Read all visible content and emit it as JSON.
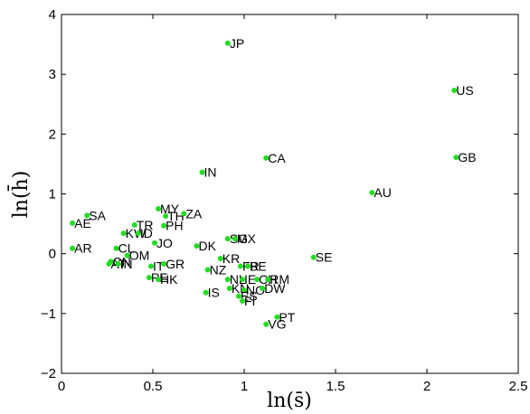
{
  "chart_data": {
    "type": "scatter",
    "xlabel": "ln(s̄)",
    "ylabel": "ln(h̄)",
    "xlim": [
      0,
      2.5
    ],
    "ylim": [
      -2,
      4
    ],
    "xticks": [
      "0",
      "0.5",
      "1",
      "1.5",
      "2",
      "2.5"
    ],
    "yticks": [
      "−2",
      "−1",
      "0",
      "1",
      "2",
      "3",
      "4"
    ],
    "xtick_values": [
      0,
      0.5,
      1,
      1.5,
      2,
      2.5
    ],
    "ytick_values": [
      -2,
      -1,
      0,
      1,
      2,
      3,
      4
    ],
    "marker_color": "#22dd22",
    "points": [
      {
        "label": "JP",
        "x": 0.91,
        "y": 3.52
      },
      {
        "label": "US",
        "x": 2.15,
        "y": 2.73
      },
      {
        "label": "GB",
        "x": 2.16,
        "y": 1.61
      },
      {
        "label": "CA",
        "x": 1.12,
        "y": 1.6
      },
      {
        "label": "IN",
        "x": 0.77,
        "y": 1.36
      },
      {
        "label": "AU",
        "x": 1.7,
        "y": 1.02
      },
      {
        "label": "SA",
        "x": 0.14,
        "y": 0.64
      },
      {
        "label": "AE",
        "x": 0.06,
        "y": 0.51
      },
      {
        "label": "MY",
        "x": 0.53,
        "y": 0.75
      },
      {
        "label": "TH",
        "x": 0.57,
        "y": 0.63
      },
      {
        "label": "ZA",
        "x": 0.67,
        "y": 0.67
      },
      {
        "label": "TR",
        "x": 0.4,
        "y": 0.48
      },
      {
        "label": "PH",
        "x": 0.56,
        "y": 0.47
      },
      {
        "label": "KW",
        "x": 0.34,
        "y": 0.34
      },
      {
        "label": "ID",
        "x": 0.42,
        "y": 0.34
      },
      {
        "label": "JO",
        "x": 0.51,
        "y": 0.18
      },
      {
        "label": "DK",
        "x": 0.74,
        "y": 0.13
      },
      {
        "label": "SG",
        "x": 0.91,
        "y": 0.25
      },
      {
        "label": "MX",
        "x": 0.95,
        "y": 0.25
      },
      {
        "label": "AR",
        "x": 0.06,
        "y": 0.09
      },
      {
        "label": "CL",
        "x": 0.3,
        "y": 0.09
      },
      {
        "label": "OM",
        "x": 0.36,
        "y": -0.03
      },
      {
        "label": "CN",
        "x": 0.27,
        "y": -0.13
      },
      {
        "label": "AT",
        "x": 0.26,
        "y": -0.17
      },
      {
        "label": "IN",
        "x": 0.31,
        "y": -0.17
      },
      {
        "label": "KR",
        "x": 0.87,
        "y": -0.08
      },
      {
        "label": "SE",
        "x": 1.38,
        "y": -0.06
      },
      {
        "label": "IT",
        "x": 0.49,
        "y": -0.21
      },
      {
        "label": "GR",
        "x": 0.56,
        "y": -0.17
      },
      {
        "label": "FR",
        "x": 0.98,
        "y": -0.21
      },
      {
        "label": "BE",
        "x": 1.02,
        "y": -0.21
      },
      {
        "label": "NZ",
        "x": 0.8,
        "y": -0.27
      },
      {
        "label": "PE",
        "x": 0.48,
        "y": -0.4
      },
      {
        "label": "HK",
        "x": 0.53,
        "y": -0.43
      },
      {
        "label": "NL",
        "x": 0.91,
        "y": -0.43
      },
      {
        "label": "IE",
        "x": 0.99,
        "y": -0.43
      },
      {
        "label": "CH",
        "x": 1.07,
        "y": -0.43
      },
      {
        "label": "RM",
        "x": 1.13,
        "y": -0.43
      },
      {
        "label": "KN",
        "x": 0.92,
        "y": -0.58
      },
      {
        "label": "NO",
        "x": 1.0,
        "y": -0.61
      },
      {
        "label": "DW",
        "x": 1.1,
        "y": -0.58
      },
      {
        "label": "IS",
        "x": 0.79,
        "y": -0.65
      },
      {
        "label": "ES",
        "x": 0.97,
        "y": -0.71
      },
      {
        "label": "FI",
        "x": 0.99,
        "y": -0.79
      },
      {
        "label": "PT",
        "x": 1.18,
        "y": -1.06
      },
      {
        "label": "VG",
        "x": 1.12,
        "y": -1.18
      }
    ]
  }
}
